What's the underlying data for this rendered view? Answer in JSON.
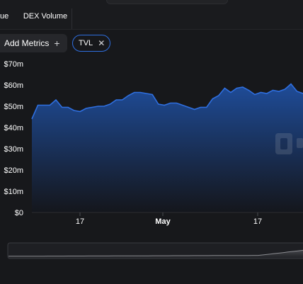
{
  "tabs": {
    "revenue_partial": "ue",
    "dex_volume": "DEX Volume"
  },
  "controls": {
    "add_metrics_label": "Add Metrics",
    "add_metrics_icon": "plus-icon",
    "metric_chip_label": "TVL",
    "metric_chip_icon": "close-icon"
  },
  "chart_data": {
    "type": "area",
    "series": [
      {
        "values": [
          44,
          50.5,
          50.5,
          50.5,
          53,
          49.5,
          49.5,
          48,
          47.5,
          49,
          49.5,
          50,
          50,
          51,
          53,
          53,
          55,
          56.5,
          56.5,
          56,
          55.5,
          51,
          50.5,
          51.5,
          51.5,
          50.5,
          49.5,
          48.5,
          49.5,
          49.5,
          53.5,
          55,
          58.5,
          56.5,
          58.5,
          59,
          57.5,
          55.5,
          56.5,
          56,
          57.5,
          57,
          58,
          60.5,
          57,
          56
        ]
      }
    ],
    "x_tick_labels": [
      "17",
      "May",
      "17"
    ],
    "y_tick_labels": [
      "$70m",
      "$60m",
      "$50m",
      "$40m",
      "$30m",
      "$20m",
      "$10m",
      "$0"
    ],
    "ylim": [
      0,
      70
    ],
    "grid": false,
    "colors": {
      "line": "#2f6fe0",
      "fill_top": "#1f4fa0",
      "fill_bottom": "#14161c",
      "navigator_line": "#8a8b90"
    }
  }
}
